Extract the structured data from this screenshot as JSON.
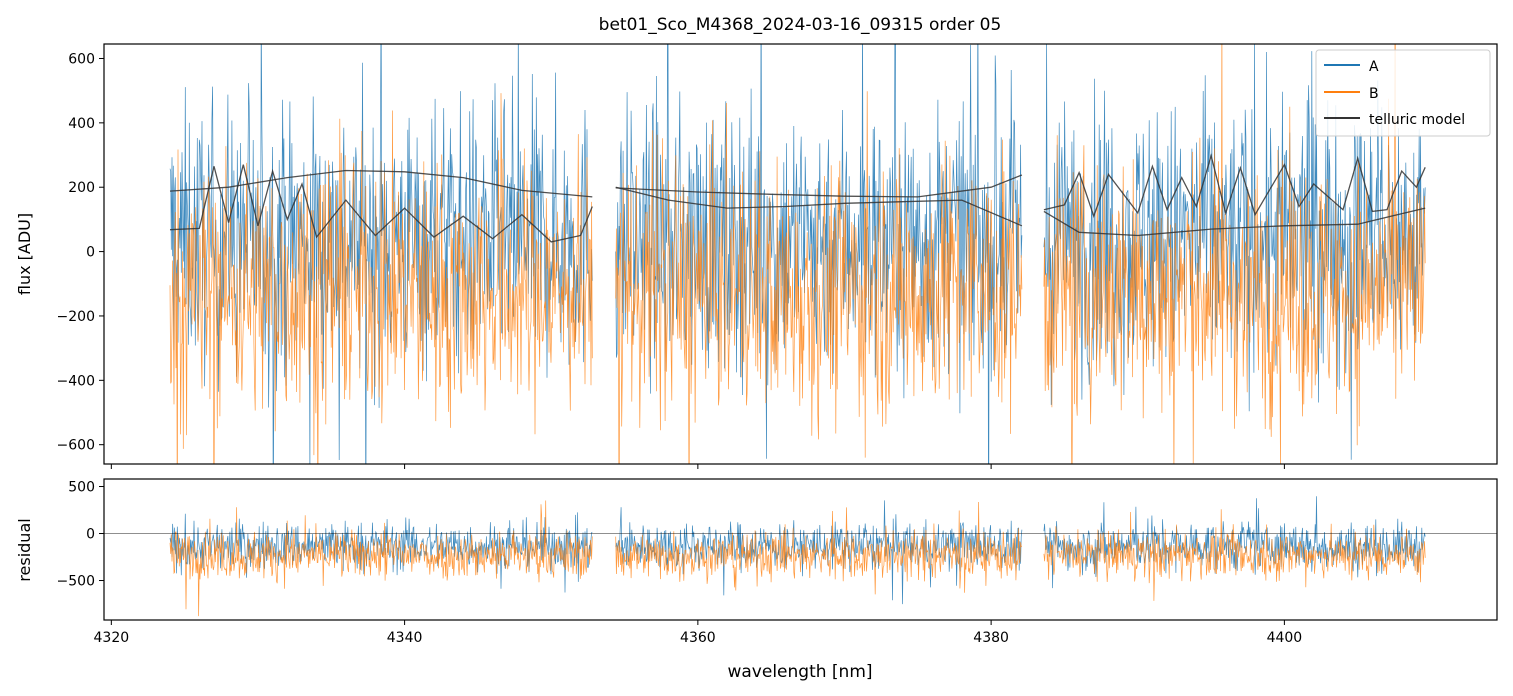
{
  "chart_data": [
    {
      "type": "line",
      "panel": "main",
      "title": "bet01_Sco_M4368_2024-03-16_09315  order 05",
      "xlabel": "",
      "ylabel": "flux [ADU]",
      "xlim": [
        4319.5,
        4414.5
      ],
      "ylim": [
        -660,
        645
      ],
      "xticks": [
        "4320",
        "4340",
        "4360",
        "4380",
        "4400"
      ],
      "xtick_values": [
        4320,
        4340,
        4360,
        4380,
        4400
      ],
      "xticklabels_visible": false,
      "yticks": [
        "−600",
        "−400",
        "−200",
        "0",
        "200",
        "400",
        "600"
      ],
      "ytick_values": [
        -600,
        -400,
        -200,
        0,
        200,
        400,
        600
      ],
      "legend": {
        "position": "top-right",
        "entries": [
          "A",
          "B",
          "telluric model"
        ]
      },
      "segments_x": [
        [
          4324.0,
          4352.8
        ],
        [
          4354.4,
          4382.1
        ],
        [
          4383.6,
          4409.6
        ]
      ],
      "series": [
        {
          "name": "A",
          "color": "#1f77b4",
          "center": 40,
          "spread": 380
        },
        {
          "name": "B",
          "color": "#ff7f0e",
          "center": -120,
          "spread": 360
        },
        {
          "name": "telluric model",
          "color": "#333333",
          "curves": [
            {
              "x": [
                4324,
                4328,
                4332,
                4336,
                4340,
                4344,
                4348,
                4352.8
              ],
              "y": [
                188,
                200,
                230,
                252,
                248,
                230,
                190,
                170
              ]
            },
            {
              "x": [
                4324,
                4326,
                4327,
                4328,
                4329,
                4330,
                4331,
                4332,
                4333,
                4334,
                4336,
                4338,
                4340,
                4342,
                4344,
                4346,
                4348,
                4350,
                4352,
                4352.8
              ],
              "y": [
                68,
                72,
                265,
                90,
                270,
                80,
                250,
                100,
                210,
                45,
                160,
                50,
                135,
                45,
                110,
                40,
                115,
                30,
                50,
                140
              ]
            },
            {
              "x": [
                4354.4,
                4358,
                4362,
                4366,
                4370,
                4374,
                4378,
                4382.1
              ],
              "y": [
                200,
                160,
                135,
                140,
                150,
                155,
                160,
                80
              ]
            },
            {
              "x": [
                4354.4,
                4360,
                4365,
                4370,
                4375,
                4380,
                4382.1
              ],
              "y": [
                198,
                185,
                178,
                172,
                170,
                200,
                238
              ]
            },
            {
              "x": [
                4383.6,
                4386,
                4390,
                4395,
                4400,
                4405,
                4409.6
              ],
              "y": [
                125,
                60,
                50,
                70,
                80,
                85,
                135
              ]
            },
            {
              "x": [
                4383.6,
                4385,
                4386,
                4387,
                4388,
                4390,
                4391,
                4392,
                4393,
                4394,
                4395,
                4396,
                4397,
                4398,
                4400,
                4401,
                4402,
                4404,
                4405,
                4406,
                4407,
                4408,
                4409,
                4409.6
              ],
              "y": [
                130,
                145,
                245,
                110,
                240,
                120,
                265,
                130,
                230,
                140,
                298,
                120,
                260,
                115,
                270,
                140,
                210,
                130,
                290,
                125,
                130,
                250,
                200,
                262
              ]
            }
          ]
        }
      ]
    },
    {
      "type": "line",
      "panel": "residual",
      "xlabel": "wavelength [nm]",
      "ylabel": "residual",
      "xlim": [
        4319.5,
        4414.5
      ],
      "ylim": [
        -920,
        580
      ],
      "xticks": [
        "4320",
        "4340",
        "4360",
        "4380",
        "4400"
      ],
      "xtick_values": [
        4320,
        4340,
        4360,
        4380,
        4400
      ],
      "yticks": [
        "−500",
        "0",
        "500"
      ],
      "ytick_values": [
        -500,
        0,
        500
      ],
      "zero_line": true,
      "series": [
        {
          "name": "A",
          "color": "#1f77b4",
          "center": -130,
          "spread": 230
        },
        {
          "name": "B",
          "color": "#ff7f0e",
          "center": -230,
          "spread": 230
        }
      ]
    }
  ]
}
